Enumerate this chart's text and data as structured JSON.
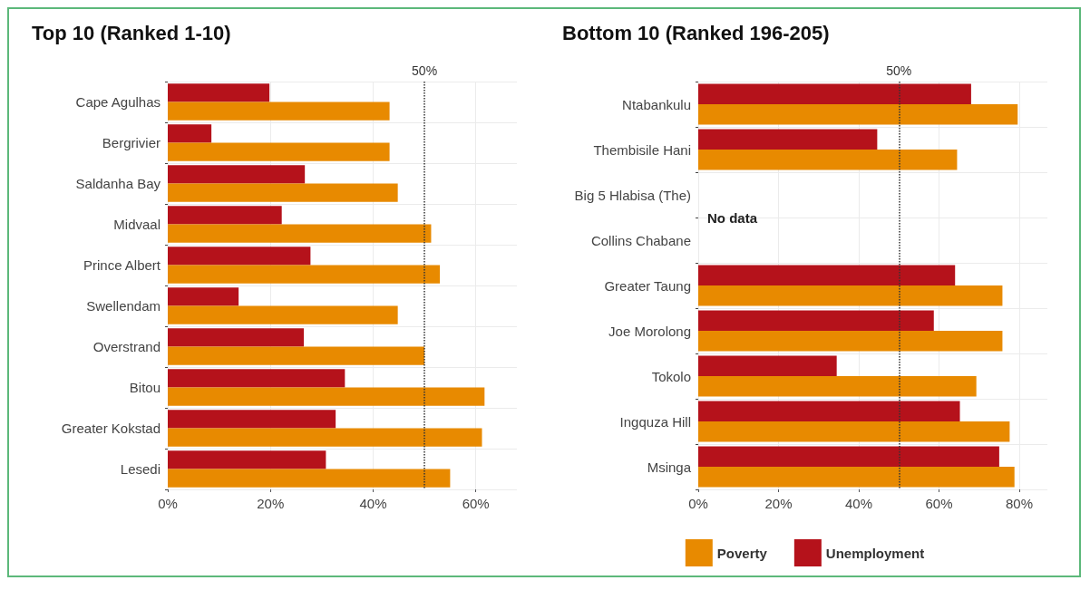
{
  "chart_data": [
    {
      "type": "bar",
      "orientation": "horizontal",
      "title": "Top 10 (Ranked 1-10)",
      "categories": [
        "Cape Agulhas",
        "Bergrivier",
        "Saldanha Bay",
        "Midvaal",
        "Prince Albert",
        "Swellendam",
        "Overstrand",
        "Bitou",
        "Greater Kokstad",
        "Lesedi"
      ],
      "series": [
        {
          "color": "#b5121b",
          "values": [
            19.8,
            8.5,
            26.7,
            22.2,
            27.8,
            13.8,
            26.5,
            34.5,
            32.7,
            30.8
          ]
        },
        {
          "color": "#e88a00",
          "values": [
            43.2,
            43.2,
            44.8,
            51.3,
            53,
            44.8,
            50,
            61.7,
            61.2,
            55
          ]
        }
      ],
      "xlim": [
        0,
        68
      ],
      "xticks": [
        {
          "value": 0,
          "label": "0%"
        },
        {
          "value": 20,
          "label": "20%"
        },
        {
          "value": 40,
          "label": "40%"
        },
        {
          "value": 60,
          "label": "60%"
        }
      ],
      "ref_lines": [
        {
          "axis": "x",
          "value": 50,
          "label": "50%",
          "line_style": "dotted",
          "color": "#333333"
        }
      ],
      "grid": true,
      "legend": false
    },
    {
      "type": "bar",
      "orientation": "horizontal",
      "title": "Bottom 10 (Ranked 196-205)",
      "categories": [
        "Ntabankulu",
        "Thembisile Hani",
        "Big 5 Hlabisa (The)",
        "Collins Chabane",
        "Greater Taung",
        "Joe Morolong",
        "Tokolo",
        "Ingquza Hill",
        "Msinga"
      ],
      "series": [
        {
          "name": "Unemployment",
          "color": "#b5121b",
          "values": [
            68,
            44.6,
            null,
            null,
            64,
            58.7,
            34.5,
            65.2,
            75
          ]
        },
        {
          "name": "Poverty",
          "color": "#e88a00",
          "values": [
            79.6,
            64.5,
            null,
            null,
            75.8,
            75.8,
            69.3,
            77.6,
            78.8
          ]
        }
      ],
      "xlim": [
        0,
        87
      ],
      "xticks": [
        {
          "value": 0,
          "label": "0%"
        },
        {
          "value": 20,
          "label": "20%"
        },
        {
          "value": 40,
          "label": "40%"
        },
        {
          "value": 60,
          "label": "60%"
        },
        {
          "value": 80,
          "label": "80%"
        }
      ],
      "ref_lines": [
        {
          "axis": "x",
          "value": 50,
          "label": "50%",
          "line_style": "dotted",
          "color": "#333333"
        }
      ],
      "annotations": [
        "No data"
      ],
      "grid": true,
      "legend": "bottom"
    }
  ]
}
